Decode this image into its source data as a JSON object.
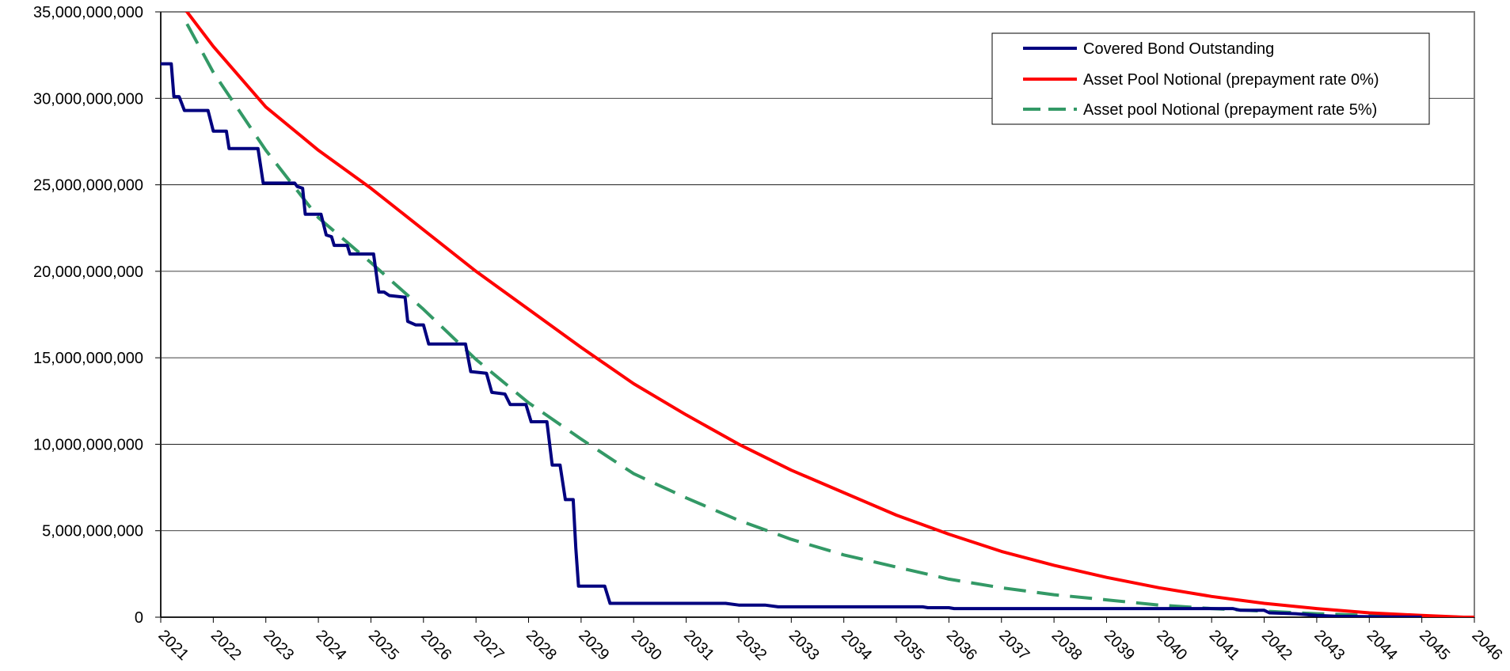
{
  "chart_data": {
    "type": "line",
    "title": "",
    "xlabel": "",
    "ylabel": "",
    "x_tick_labels": [
      "2021",
      "2022",
      "2023",
      "2024",
      "2025",
      "2026",
      "2027",
      "2028",
      "2029",
      "2030",
      "2031",
      "2032",
      "2033",
      "2034",
      "2035",
      "2036",
      "2037",
      "2038",
      "2039",
      "2040",
      "2041",
      "2042",
      "2043",
      "2044",
      "2045",
      "2046"
    ],
    "y_tick_labels": [
      "0",
      "5,000,000,000",
      "10,000,000,000",
      "15,000,000,000",
      "20,000,000,000",
      "25,000,000,000",
      "30,000,000,000",
      "35,000,000,000"
    ],
    "xlim": [
      2021,
      2046
    ],
    "ylim": [
      0,
      35000000000
    ],
    "y_ticks": [
      0,
      5000000000,
      10000000000,
      15000000000,
      20000000000,
      25000000000,
      30000000000,
      35000000000
    ],
    "grid": "horizontal",
    "legend_position": "top-right",
    "series": [
      {
        "name": "Covered Bond Outstanding",
        "color": "#00007F",
        "style": "solid",
        "points": [
          [
            2021.0,
            32000000000
          ],
          [
            2021.2,
            32000000000
          ],
          [
            2021.25,
            30100000000
          ],
          [
            2021.35,
            30100000000
          ],
          [
            2021.45,
            29300000000
          ],
          [
            2021.9,
            29300000000
          ],
          [
            2022.0,
            28100000000
          ],
          [
            2022.25,
            28100000000
          ],
          [
            2022.3,
            27100000000
          ],
          [
            2022.85,
            27100000000
          ],
          [
            2022.95,
            25100000000
          ],
          [
            2023.55,
            25100000000
          ],
          [
            2023.6,
            24900000000
          ],
          [
            2023.7,
            24800000000
          ],
          [
            2023.75,
            23300000000
          ],
          [
            2024.05,
            23300000000
          ],
          [
            2024.15,
            22100000000
          ],
          [
            2024.25,
            22000000000
          ],
          [
            2024.3,
            21500000000
          ],
          [
            2024.55,
            21500000000
          ],
          [
            2024.6,
            21000000000
          ],
          [
            2025.05,
            21000000000
          ],
          [
            2025.15,
            18800000000
          ],
          [
            2025.25,
            18800000000
          ],
          [
            2025.35,
            18600000000
          ],
          [
            2025.65,
            18500000000
          ],
          [
            2025.7,
            17100000000
          ],
          [
            2025.85,
            16900000000
          ],
          [
            2026.0,
            16900000000
          ],
          [
            2026.1,
            15800000000
          ],
          [
            2026.8,
            15800000000
          ],
          [
            2026.9,
            14200000000
          ],
          [
            2027.2,
            14100000000
          ],
          [
            2027.3,
            13000000000
          ],
          [
            2027.55,
            12900000000
          ],
          [
            2027.65,
            12300000000
          ],
          [
            2027.95,
            12300000000
          ],
          [
            2028.05,
            11300000000
          ],
          [
            2028.35,
            11300000000
          ],
          [
            2028.45,
            8800000000
          ],
          [
            2028.6,
            8800000000
          ],
          [
            2028.7,
            6800000000
          ],
          [
            2028.85,
            6800000000
          ],
          [
            2028.9,
            4000000000
          ],
          [
            2028.95,
            1800000000
          ],
          [
            2029.45,
            1800000000
          ],
          [
            2029.55,
            800000000
          ],
          [
            2031.75,
            800000000
          ],
          [
            2032.0,
            700000000
          ],
          [
            2032.5,
            700000000
          ],
          [
            2032.75,
            600000000
          ],
          [
            2035.5,
            600000000
          ],
          [
            2035.6,
            550000000
          ],
          [
            2036.0,
            550000000
          ],
          [
            2036.1,
            500000000
          ],
          [
            2041.4,
            500000000
          ],
          [
            2041.55,
            400000000
          ],
          [
            2042.0,
            400000000
          ],
          [
            2042.1,
            250000000
          ],
          [
            2042.6,
            200000000
          ],
          [
            2043.0,
            100000000
          ],
          [
            2043.4,
            50000000
          ],
          [
            2044.5,
            10000000
          ],
          [
            2045.0,
            0
          ]
        ]
      },
      {
        "name": "Asset Pool Notional (prepayment rate 0%)",
        "color": "#FF0000",
        "style": "solid",
        "points": [
          [
            2021.0,
            36500000000
          ],
          [
            2021.5,
            35000000000
          ],
          [
            2022.0,
            33000000000
          ],
          [
            2023.0,
            29500000000
          ],
          [
            2024.0,
            27000000000
          ],
          [
            2025.0,
            24800000000
          ],
          [
            2026.0,
            22400000000
          ],
          [
            2027.0,
            20000000000
          ],
          [
            2028.0,
            17800000000
          ],
          [
            2029.0,
            15600000000
          ],
          [
            2030.0,
            13500000000
          ],
          [
            2031.0,
            11700000000
          ],
          [
            2032.0,
            10000000000
          ],
          [
            2033.0,
            8500000000
          ],
          [
            2034.0,
            7200000000
          ],
          [
            2035.0,
            5900000000
          ],
          [
            2036.0,
            4800000000
          ],
          [
            2037.0,
            3800000000
          ],
          [
            2038.0,
            3000000000
          ],
          [
            2039.0,
            2300000000
          ],
          [
            2040.0,
            1700000000
          ],
          [
            2041.0,
            1200000000
          ],
          [
            2042.0,
            800000000
          ],
          [
            2043.0,
            500000000
          ],
          [
            2044.0,
            250000000
          ],
          [
            2045.0,
            100000000
          ],
          [
            2045.8,
            0
          ],
          [
            2046.0,
            0
          ]
        ]
      },
      {
        "name": "Asset pool Notional (prepayment rate 5%)",
        "color": "#339966",
        "style": "dashed",
        "points": [
          [
            2021.5,
            34300000000
          ],
          [
            2022.0,
            31500000000
          ],
          [
            2023.0,
            27000000000
          ],
          [
            2024.0,
            23100000000
          ],
          [
            2025.0,
            20500000000
          ],
          [
            2026.0,
            17800000000
          ],
          [
            2027.0,
            14900000000
          ],
          [
            2028.0,
            12400000000
          ],
          [
            2029.0,
            10300000000
          ],
          [
            2030.0,
            8300000000
          ],
          [
            2031.0,
            6900000000
          ],
          [
            2032.0,
            5600000000
          ],
          [
            2033.0,
            4500000000
          ],
          [
            2034.0,
            3600000000
          ],
          [
            2035.0,
            2900000000
          ],
          [
            2036.0,
            2200000000
          ],
          [
            2037.0,
            1700000000
          ],
          [
            2038.0,
            1300000000
          ],
          [
            2039.0,
            1000000000
          ],
          [
            2040.0,
            700000000
          ],
          [
            2041.0,
            500000000
          ],
          [
            2042.0,
            350000000
          ],
          [
            2043.0,
            200000000
          ],
          [
            2044.0,
            100000000
          ],
          [
            2045.0,
            30000000
          ],
          [
            2045.8,
            0
          ]
        ]
      }
    ]
  }
}
